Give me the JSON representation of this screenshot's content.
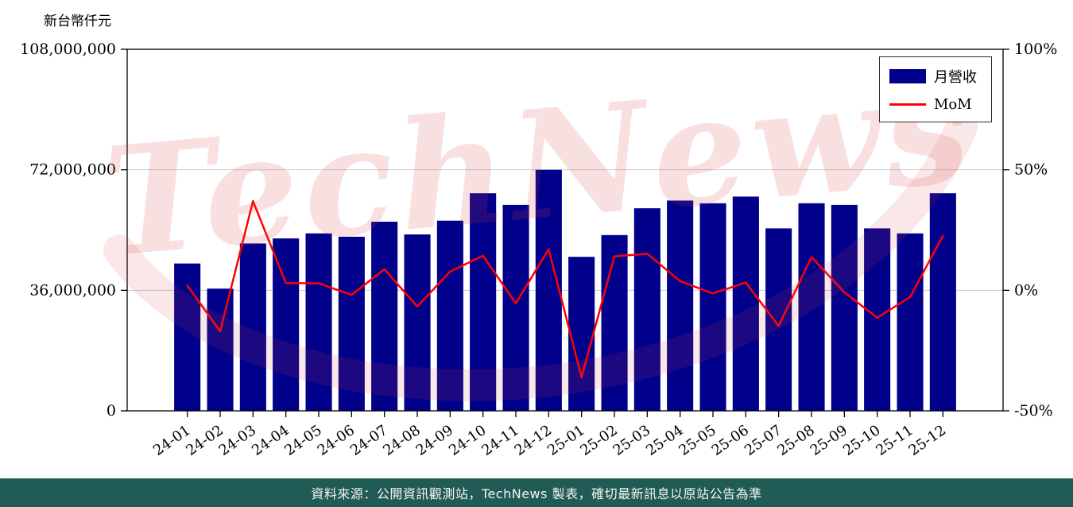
{
  "page": {
    "watermark": "TechNews",
    "footer": "資料來源：公開資訊觀測站，TechNews 製表，確切最新訊息以原站公告為準"
  },
  "colors": {
    "bar": "#00008B",
    "line": "#FF0000",
    "grid": "#CCCCCC",
    "axis": "#000000",
    "footer_bg": "#215B55",
    "watermark": "#D64545"
  },
  "chart_data": {
    "type": "bar",
    "title": "",
    "categories": [
      "24-01",
      "24-02",
      "24-03",
      "24-04",
      "24-05",
      "24-06",
      "24-07",
      "24-08",
      "24-09",
      "24-10",
      "24-11",
      "24-12",
      "25-01",
      "25-02",
      "25-03",
      "25-04",
      "25-05",
      "25-06",
      "25-07",
      "25-08",
      "25-09",
      "25-10",
      "25-11",
      "25-12"
    ],
    "series": [
      {
        "name": "月營收",
        "type": "bar",
        "axis": "left",
        "color": "#00008B",
        "values": [
          44000000,
          36500000,
          50000000,
          51500000,
          53000000,
          52000000,
          56500000,
          52700000,
          56800000,
          65000000,
          61500000,
          72000000,
          46000000,
          52500000,
          60500000,
          62800000,
          62000000,
          64000000,
          54500000,
          62000000,
          61500000,
          54500000,
          53000000,
          65000000
        ]
      },
      {
        "name": "MoM",
        "type": "line",
        "axis": "right",
        "color": "#FF0000",
        "values": [
          2,
          -17,
          37,
          3,
          2.9,
          -1.9,
          8.7,
          -6.7,
          7.8,
          14.4,
          -5.4,
          17.1,
          -36.1,
          14.1,
          15.2,
          3.8,
          -1.3,
          3.2,
          -14.8,
          13.8,
          -0.8,
          -11.4,
          -2.8,
          22.6
        ]
      }
    ],
    "left_axis": {
      "title": "新台幣仟元",
      "range": [
        0,
        108000000
      ],
      "ticks": [
        0,
        36000000,
        72000000,
        108000000
      ],
      "tick_labels": [
        "0",
        "36,000,000",
        "72,000,000",
        "108,000,000"
      ]
    },
    "right_axis": {
      "range": [
        -50,
        100
      ],
      "ticks": [
        -50,
        0,
        50,
        100
      ],
      "tick_labels": [
        "-50%",
        "0%",
        "50%",
        "100%"
      ]
    },
    "grid": true,
    "legend_position": "top-right"
  }
}
